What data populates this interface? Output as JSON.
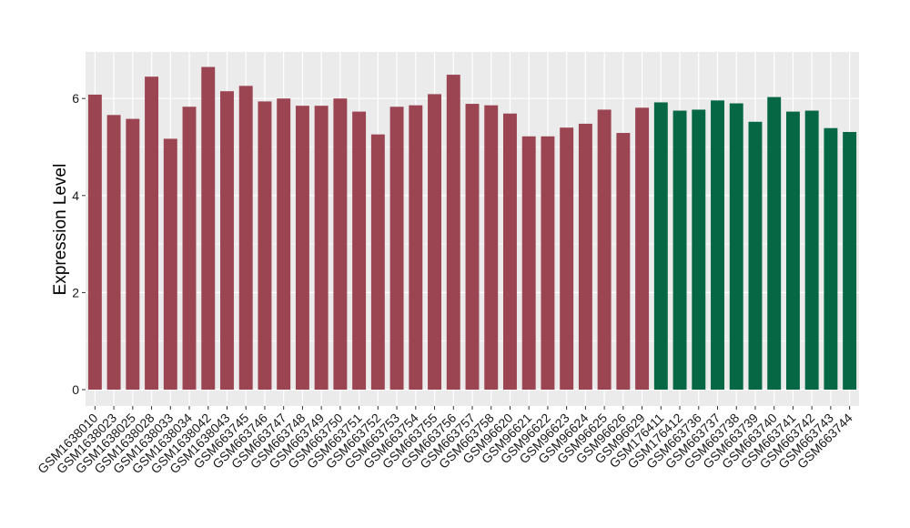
{
  "chart_data": {
    "type": "bar",
    "title": "",
    "xlabel": "",
    "ylabel": "Expression Level",
    "ylim": [
      0,
      7
    ],
    "yticks": [
      0,
      2,
      4,
      6
    ],
    "grid": true,
    "categories": [
      "GSM1638010",
      "GSM1638023",
      "GSM1638025",
      "GSM1638028",
      "GSM1638033",
      "GSM1638034",
      "GSM1638042",
      "GSM1638043",
      "GSM663745",
      "GSM663746",
      "GSM663747",
      "GSM663748",
      "GSM663749",
      "GSM663750",
      "GSM663751",
      "GSM663752",
      "GSM663753",
      "GSM663754",
      "GSM663755",
      "GSM663756",
      "GSM663757",
      "GSM663758",
      "GSM96620",
      "GSM96621",
      "GSM96622",
      "GSM96623",
      "GSM96624",
      "GSM96625",
      "GSM96626",
      "GSM96629",
      "GSM176411",
      "GSM176412",
      "GSM663736",
      "GSM663737",
      "GSM663738",
      "GSM663739",
      "GSM663740",
      "GSM663741",
      "GSM663742",
      "GSM663743",
      "GSM663744"
    ],
    "values": [
      6.08,
      5.66,
      5.58,
      6.45,
      5.17,
      5.83,
      6.65,
      6.15,
      6.26,
      5.94,
      6.0,
      5.85,
      5.85,
      6.0,
      5.73,
      5.26,
      5.83,
      5.86,
      6.09,
      6.49,
      5.89,
      5.86,
      5.69,
      5.22,
      5.22,
      5.4,
      5.48,
      5.77,
      5.29,
      5.81,
      5.92,
      5.75,
      5.77,
      5.96,
      5.9,
      5.52,
      6.03,
      5.73,
      5.75,
      5.39,
      5.31
    ],
    "group_split_index": 30,
    "colors": {
      "group1": "#9b4452",
      "group2": "#056744",
      "panel_bg": "#ebebeb",
      "grid": "#ffffff"
    }
  }
}
